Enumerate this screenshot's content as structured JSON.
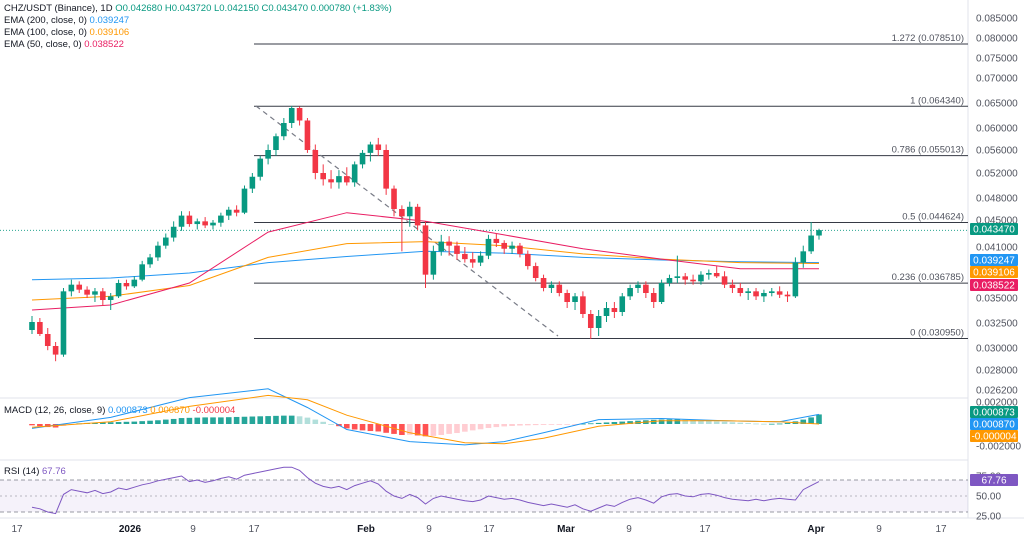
{
  "legend": {
    "main": {
      "symbol": "CHZ/USDT (Binance), 1D",
      "ohlc": "O0.042680 H0.043720 L0.042150 C0.043470 0.000780 (+1.83%)"
    },
    "ema200": {
      "label": "EMA (200, close, 0)",
      "value": "0.039247",
      "color": "#2196f3"
    },
    "ema100": {
      "label": "EMA (100, close, 0)",
      "value": "0.039106",
      "color": "#ff9800"
    },
    "ema50": {
      "label": "EMA (50, close, 0)",
      "value": "0.038522",
      "color": "#e91e63"
    },
    "macd": {
      "label": "MACD (12, 26, close, 9)",
      "v1": "0.000873",
      "v2": "0.000870",
      "v3": "-0.000004"
    },
    "rsi": {
      "label": "RSI (14)",
      "value": "67.76"
    }
  },
  "colors": {
    "up": "#089981",
    "down": "#f23645",
    "ema200": "#2196f3",
    "ema100": "#ff9800",
    "ema50": "#e91e63",
    "rsi": "#7e57c2",
    "fib": "#787b86",
    "last": "#089981"
  },
  "chart_data": [
    {
      "type": "candlestick",
      "title": "CHZ/USDT (Binance), 1D",
      "x_ticks": [
        "17",
        "2026",
        "9",
        "17",
        "Feb",
        "9",
        "17",
        "Mar",
        "9",
        "17",
        "Apr",
        "9",
        "17"
      ],
      "y_ticks": [
        "0.085000",
        "0.080000",
        "0.075000",
        "0.070000",
        "0.065000",
        "0.060000",
        "0.056000",
        "0.052000",
        "0.048000",
        "0.045000",
        "0.041000",
        "0.038000",
        "0.035000",
        "0.032500",
        "0.030000",
        "0.028000",
        "0.026200"
      ],
      "fib_levels": [
        {
          "label": "1.272 (0.078510)",
          "value": 0.07851
        },
        {
          "label": "1 (0.064340)",
          "value": 0.06434
        },
        {
          "label": "0.786 (0.055013)",
          "value": 0.055013
        },
        {
          "label": "0.5 (0.044624)",
          "value": 0.044624
        },
        {
          "label": "0.236 (0.036785)",
          "value": 0.036785
        },
        {
          "label": "0 (0.030950)",
          "value": 0.03095
        }
      ],
      "price_labels": [
        {
          "text": "0.043470",
          "value": 0.04347,
          "color": "#089981"
        },
        {
          "text": "0.039247",
          "value": 0.039247,
          "color": "#2196f3"
        },
        {
          "text": "0.039106",
          "value": 0.039106,
          "color": "#ff9800"
        },
        {
          "text": "0.038522",
          "value": 0.038522,
          "color": "#e91e63"
        }
      ],
      "candles_ohlc": [
        [
          0.0318,
          0.0332,
          0.0314,
          0.0326
        ],
        [
          0.0326,
          0.033,
          0.0312,
          0.0314
        ],
        [
          0.0314,
          0.032,
          0.0298,
          0.0302
        ],
        [
          0.0302,
          0.0306,
          0.0288,
          0.0294
        ],
        [
          0.0294,
          0.0362,
          0.0292,
          0.0358
        ],
        [
          0.0358,
          0.0372,
          0.0352,
          0.0366
        ],
        [
          0.0366,
          0.037,
          0.0356,
          0.036
        ],
        [
          0.036,
          0.0364,
          0.035,
          0.0354
        ],
        [
          0.0354,
          0.0362,
          0.0346,
          0.0358
        ],
        [
          0.0358,
          0.0362,
          0.0342,
          0.0348
        ],
        [
          0.0348,
          0.0356,
          0.0338,
          0.0352
        ],
        [
          0.0352,
          0.0372,
          0.035,
          0.0368
        ],
        [
          0.0368,
          0.0372,
          0.036,
          0.0364
        ],
        [
          0.0364,
          0.0376,
          0.0362,
          0.0372
        ],
        [
          0.0372,
          0.0394,
          0.037,
          0.039
        ],
        [
          0.039,
          0.0402,
          0.0386,
          0.0398
        ],
        [
          0.0398,
          0.0418,
          0.0394,
          0.0412
        ],
        [
          0.0412,
          0.043,
          0.0408,
          0.0424
        ],
        [
          0.0424,
          0.0448,
          0.0418,
          0.044
        ],
        [
          0.044,
          0.0462,
          0.0434,
          0.0456
        ],
        [
          0.0456,
          0.0462,
          0.044,
          0.0444
        ],
        [
          0.0444,
          0.0452,
          0.0436,
          0.0448
        ],
        [
          0.0448,
          0.0454,
          0.0438,
          0.0442
        ],
        [
          0.0442,
          0.045,
          0.0436,
          0.0446
        ],
        [
          0.0446,
          0.046,
          0.044,
          0.0456
        ],
        [
          0.0456,
          0.0468,
          0.045,
          0.0464
        ],
        [
          0.0464,
          0.047,
          0.0455,
          0.046
        ],
        [
          0.046,
          0.05,
          0.0458,
          0.0495
        ],
        [
          0.0495,
          0.052,
          0.0488,
          0.0514
        ],
        [
          0.0514,
          0.055,
          0.0508,
          0.0545
        ],
        [
          0.0545,
          0.057,
          0.0535,
          0.056
        ],
        [
          0.056,
          0.059,
          0.055,
          0.0585
        ],
        [
          0.0585,
          0.062,
          0.0578,
          0.061
        ],
        [
          0.061,
          0.0644,
          0.06,
          0.064
        ],
        [
          0.064,
          0.0643,
          0.0605,
          0.0615
        ],
        [
          0.0615,
          0.062,
          0.0555,
          0.056
        ],
        [
          0.056,
          0.057,
          0.051,
          0.052
        ],
        [
          0.052,
          0.0535,
          0.05,
          0.051
        ],
        [
          0.051,
          0.0525,
          0.0495,
          0.0505
        ],
        [
          0.0505,
          0.0525,
          0.0495,
          0.0515
        ],
        [
          0.0515,
          0.053,
          0.05,
          0.0505
        ],
        [
          0.0505,
          0.054,
          0.0498,
          0.0535
        ],
        [
          0.0535,
          0.056,
          0.0528,
          0.0555
        ],
        [
          0.0555,
          0.0575,
          0.054,
          0.057
        ],
        [
          0.057,
          0.0582,
          0.055,
          0.056
        ],
        [
          0.056,
          0.057,
          0.0485,
          0.0495
        ],
        [
          0.0495,
          0.05,
          0.0455,
          0.0465
        ],
        [
          0.0465,
          0.047,
          0.0405,
          0.0455
        ],
        [
          0.0455,
          0.0475,
          0.044,
          0.0468
        ],
        [
          0.0468,
          0.0472,
          0.0435,
          0.0442
        ],
        [
          0.0442,
          0.0448,
          0.0362,
          0.0378
        ],
        [
          0.0378,
          0.0412,
          0.0372,
          0.0405
        ],
        [
          0.0405,
          0.0428,
          0.04,
          0.0418
        ],
        [
          0.0418,
          0.0426,
          0.04,
          0.0412
        ],
        [
          0.0412,
          0.0418,
          0.0395,
          0.0402
        ],
        [
          0.0402,
          0.041,
          0.0392,
          0.0396
        ],
        [
          0.0396,
          0.0404,
          0.0386,
          0.0392
        ],
        [
          0.0392,
          0.0405,
          0.0388,
          0.04
        ],
        [
          0.04,
          0.0428,
          0.0396,
          0.0422
        ],
        [
          0.0422,
          0.043,
          0.041,
          0.0416
        ],
        [
          0.0416,
          0.042,
          0.0402,
          0.0408
        ],
        [
          0.0408,
          0.0418,
          0.0402,
          0.0412
        ],
        [
          0.0412,
          0.0416,
          0.0398,
          0.0402
        ],
        [
          0.0402,
          0.0406,
          0.0384,
          0.0388
        ],
        [
          0.0388,
          0.0392,
          0.037,
          0.0374
        ],
        [
          0.0374,
          0.0378,
          0.0358,
          0.0362
        ],
        [
          0.0362,
          0.037,
          0.0356,
          0.0366
        ],
        [
          0.0366,
          0.037,
          0.0352,
          0.0356
        ],
        [
          0.0356,
          0.036,
          0.034,
          0.0346
        ],
        [
          0.0346,
          0.0356,
          0.0338,
          0.0352
        ],
        [
          0.0352,
          0.0358,
          0.033,
          0.0334
        ],
        [
          0.0334,
          0.0338,
          0.0309,
          0.032
        ],
        [
          0.032,
          0.0338,
          0.0312,
          0.0332
        ],
        [
          0.0332,
          0.0346,
          0.0326,
          0.034
        ],
        [
          0.034,
          0.0346,
          0.033,
          0.0336
        ],
        [
          0.0336,
          0.0356,
          0.0332,
          0.0352
        ],
        [
          0.0352,
          0.0366,
          0.0348,
          0.0362
        ],
        [
          0.0362,
          0.037,
          0.0356,
          0.0366
        ],
        [
          0.0366,
          0.037,
          0.035,
          0.0356
        ],
        [
          0.0356,
          0.0362,
          0.034,
          0.0346
        ],
        [
          0.0346,
          0.0372,
          0.0344,
          0.0368
        ],
        [
          0.0368,
          0.0378,
          0.0364,
          0.0374
        ],
        [
          0.0374,
          0.04,
          0.0368,
          0.0376
        ],
        [
          0.0376,
          0.038,
          0.0366,
          0.0372
        ],
        [
          0.0372,
          0.0378,
          0.0366,
          0.037
        ],
        [
          0.037,
          0.0382,
          0.0366,
          0.0378
        ],
        [
          0.0378,
          0.0384,
          0.0372,
          0.038
        ],
        [
          0.038,
          0.0388,
          0.0374,
          0.0376
        ],
        [
          0.0376,
          0.0382,
          0.0362,
          0.0366
        ],
        [
          0.0366,
          0.0372,
          0.0356,
          0.0362
        ],
        [
          0.0362,
          0.0368,
          0.0352,
          0.0356
        ],
        [
          0.0356,
          0.0362,
          0.0348,
          0.0358
        ],
        [
          0.0358,
          0.0362,
          0.0348,
          0.0352
        ],
        [
          0.0352,
          0.036,
          0.0346,
          0.0356
        ],
        [
          0.0356,
          0.0362,
          0.0352,
          0.0358
        ],
        [
          0.0358,
          0.0364,
          0.035,
          0.0354
        ],
        [
          0.0354,
          0.0358,
          0.0346,
          0.0352
        ],
        [
          0.0352,
          0.0398,
          0.035,
          0.0392
        ],
        [
          0.0392,
          0.0412,
          0.0386,
          0.0405
        ],
        [
          0.0405,
          0.0447,
          0.0402,
          0.0427
        ],
        [
          0.0427,
          0.0437,
          0.0421,
          0.0435
        ]
      ],
      "ema50": [
        [
          0,
          0.0338
        ],
        [
          10,
          0.0343
        ],
        [
          20,
          0.0368
        ],
        [
          30,
          0.0432
        ],
        [
          40,
          0.046
        ],
        [
          50,
          0.0448
        ],
        [
          60,
          0.0428
        ],
        [
          70,
          0.0408
        ],
        [
          80,
          0.0396
        ],
        [
          90,
          0.0385
        ],
        [
          100,
          0.0385
        ]
      ],
      "ema100": [
        [
          0,
          0.0348
        ],
        [
          10,
          0.0352
        ],
        [
          20,
          0.0365
        ],
        [
          30,
          0.0398
        ],
        [
          40,
          0.0415
        ],
        [
          50,
          0.0418
        ],
        [
          60,
          0.0412
        ],
        [
          70,
          0.0402
        ],
        [
          80,
          0.0396
        ],
        [
          90,
          0.0392
        ],
        [
          100,
          0.0391
        ]
      ],
      "ema200": [
        [
          0,
          0.0372
        ],
        [
          10,
          0.0374
        ],
        [
          20,
          0.038
        ],
        [
          30,
          0.0392
        ],
        [
          40,
          0.0399
        ],
        [
          50,
          0.0405
        ],
        [
          60,
          0.0403
        ],
        [
          70,
          0.0398
        ],
        [
          80,
          0.0395
        ],
        [
          90,
          0.0393
        ],
        [
          100,
          0.0392
        ]
      ]
    },
    {
      "type": "bar",
      "title": "MACD (12, 26, close, 9)",
      "y_ticks": [
        "0.002000",
        "-0.002000"
      ],
      "ylim": [
        -0.0023,
        0.0023
      ],
      "price_labels": [
        {
          "text": "0.000873",
          "value": 0.000873,
          "color": "#089981"
        },
        {
          "text": "0.000870",
          "value": 0.00087,
          "color": "#2196f3"
        },
        {
          "text": "-0.000004",
          "value": -4e-06,
          "color": "#ff9800"
        }
      ],
      "histogram": [
        -0.00012,
        -0.0002,
        -0.00028,
        -0.00032,
        -0.00018,
        -4e-05,
        6e-05,
        0.0001,
        0.00012,
        0.00014,
        0.00016,
        0.00018,
        0.0002,
        0.00022,
        0.00026,
        0.0003,
        0.00034,
        0.0004,
        0.00046,
        0.00054,
        0.00056,
        0.00058,
        0.0006,
        0.0006,
        0.0006,
        0.00062,
        0.00064,
        0.00066,
        0.00068,
        0.0007,
        0.00072,
        0.00074,
        0.00076,
        0.00076,
        0.0007,
        0.00058,
        0.0004,
        0.0002,
        0.0,
        -0.0002,
        -0.0004,
        -0.0005,
        -0.00058,
        -0.00064,
        -0.00068,
        -0.0008,
        -0.0009,
        -0.001,
        -0.00098,
        -0.00104,
        -0.00112,
        -0.00108,
        -0.001,
        -0.0009,
        -0.00082,
        -0.0007,
        -0.00058,
        -0.00048,
        -0.00036,
        -0.00028,
        -0.00022,
        -0.00018,
        -0.00014,
        -0.00012,
        -0.0001,
        -8e-05,
        -6e-05,
        -4e-05,
        -3e-05,
        -2e-05,
        3e-05,
        6e-05,
        0.0001,
        0.00014,
        0.00018,
        0.00022,
        0.00026,
        0.0003,
        0.00034,
        0.00038,
        0.0004,
        0.00042,
        0.00042,
        0.0004,
        0.00036,
        0.00032,
        0.00028,
        0.00024,
        0.0002,
        0.00016,
        0.00012,
        8e-05,
        4e-05,
        2e-05,
        2e-05,
        4e-05,
        0.0001,
        0.00024,
        0.0004,
        0.0006,
        0.00087
      ],
      "macd": [
        [
          0,
          -0.0004
        ],
        [
          10,
          0.0006
        ],
        [
          20,
          0.0024
        ],
        [
          30,
          0.0032
        ],
        [
          35,
          0.0015
        ],
        [
          40,
          -0.0005
        ],
        [
          48,
          -0.0016
        ],
        [
          55,
          -0.0019
        ],
        [
          60,
          -0.0016
        ],
        [
          65,
          -0.0008
        ],
        [
          72,
          0.0004
        ],
        [
          80,
          0.0005
        ],
        [
          88,
          0.0003
        ],
        [
          95,
          0.0002
        ],
        [
          100,
          0.00087
        ]
      ],
      "signal": [
        [
          0,
          -0.0003
        ],
        [
          10,
          0.0002
        ],
        [
          20,
          0.0016
        ],
        [
          30,
          0.0026
        ],
        [
          35,
          0.0022
        ],
        [
          40,
          0.0008
        ],
        [
          48,
          -0.0008
        ],
        [
          55,
          -0.0017
        ],
        [
          60,
          -0.0018
        ],
        [
          65,
          -0.0013
        ],
        [
          72,
          -0.0002
        ],
        [
          80,
          0.0003
        ],
        [
          88,
          0.0003
        ],
        [
          95,
          0.0002
        ],
        [
          100,
          -4e-06
        ]
      ]
    },
    {
      "type": "line",
      "title": "RSI (14)",
      "y_ticks": [
        "75.00",
        "50.00",
        "25.00"
      ],
      "ylim": [
        25,
        75
      ],
      "price_labels": [
        {
          "text": "67.76",
          "value": 67.76,
          "color": "#7e57c2"
        }
      ],
      "values": [
        36,
        34,
        30,
        28,
        52,
        58,
        56,
        54,
        57,
        53,
        55,
        60,
        58,
        61,
        64,
        66,
        69,
        71,
        73,
        75,
        68,
        70,
        67,
        69,
        72,
        74,
        71,
        76,
        78,
        80,
        82,
        84,
        86,
        86,
        82,
        73,
        66,
        62,
        60,
        62,
        58,
        63,
        66,
        69,
        65,
        56,
        50,
        47,
        52,
        48,
        40,
        47,
        50,
        48,
        46,
        44,
        43,
        45,
        50,
        48,
        46,
        47,
        45,
        42,
        40,
        38,
        40,
        38,
        36,
        39,
        34,
        31,
        35,
        39,
        37,
        42,
        46,
        48,
        45,
        41,
        49,
        52,
        53,
        50,
        49,
        52,
        53,
        51,
        48,
        46,
        45,
        44,
        46,
        44,
        46,
        47,
        46,
        45,
        58,
        63,
        68
      ]
    }
  ]
}
